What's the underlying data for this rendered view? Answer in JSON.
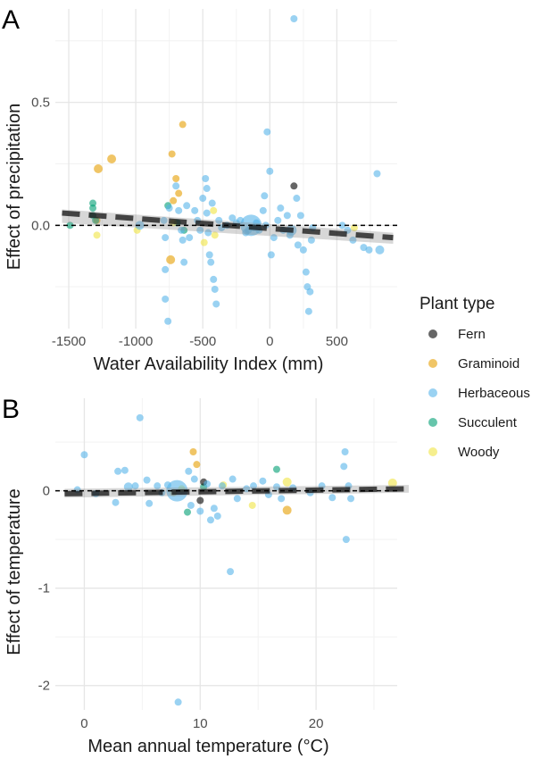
{
  "legend": {
    "title": "Plant type",
    "items": [
      {
        "label": "Fern",
        "color": "#000000"
      },
      {
        "label": "Graminoid",
        "color": "#E69F00"
      },
      {
        "label": "Herbaceous",
        "color": "#56B4E9"
      },
      {
        "label": "Succulent",
        "color": "#009E73"
      },
      {
        "label": "Woody",
        "color": "#F0E442"
      }
    ]
  },
  "chart_data": [
    {
      "panel": "A",
      "type": "scatter",
      "xlabel": "Water Availability Index (mm)",
      "ylabel": "Effect of precipitation",
      "xlim": [
        -1600,
        950
      ],
      "ylim": [
        -0.42,
        0.88
      ],
      "x_ticks": [
        -1500,
        -1000,
        -500,
        0,
        500
      ],
      "x_tick_labels": [
        "-1500",
        "-1000",
        "-500",
        "0",
        "500"
      ],
      "y_ticks": [
        0.0,
        0.5
      ],
      "y_tick_labels": [
        "0.0",
        "0.5"
      ],
      "grid": true,
      "reference_line_y": 0,
      "trend": {
        "x": [
          -1550,
          920
        ],
        "y": [
          0.05,
          -0.05
        ],
        "band_low": [
          0.01,
          -0.075
        ],
        "band_high": [
          0.065,
          -0.03
        ]
      },
      "points": [
        {
          "x": 180,
          "y": 0.84,
          "type": "Herbaceous",
          "size": 4
        },
        {
          "x": -1280,
          "y": 0.23,
          "type": "Graminoid",
          "size": 5
        },
        {
          "x": -1180,
          "y": 0.27,
          "type": "Graminoid",
          "size": 5
        },
        {
          "x": -650,
          "y": 0.41,
          "type": "Graminoid",
          "size": 4
        },
        {
          "x": -730,
          "y": 0.29,
          "type": "Graminoid",
          "size": 4
        },
        {
          "x": -700,
          "y": 0.19,
          "type": "Graminoid",
          "size": 4
        },
        {
          "x": -720,
          "y": 0.1,
          "type": "Graminoid",
          "size": 4
        },
        {
          "x": -680,
          "y": 0.13,
          "type": "Graminoid",
          "size": 4
        },
        {
          "x": -740,
          "y": -0.14,
          "type": "Graminoid",
          "size": 5
        },
        {
          "x": -1290,
          "y": 0.02,
          "type": "Graminoid",
          "size": 4
        },
        {
          "x": -1490,
          "y": 0.0,
          "type": "Succulent",
          "size": 4
        },
        {
          "x": -1320,
          "y": 0.09,
          "type": "Succulent",
          "size": 4
        },
        {
          "x": -1320,
          "y": 0.07,
          "type": "Succulent",
          "size": 4
        },
        {
          "x": -1320,
          "y": 0.04,
          "type": "Succulent",
          "size": 4
        },
        {
          "x": -1300,
          "y": 0.02,
          "type": "Succulent",
          "size": 4
        },
        {
          "x": -760,
          "y": 0.08,
          "type": "Succulent",
          "size": 4
        },
        {
          "x": -690,
          "y": 0.01,
          "type": "Succulent",
          "size": 4
        },
        {
          "x": -640,
          "y": -0.02,
          "type": "Succulent",
          "size": 4
        },
        {
          "x": 180,
          "y": 0.16,
          "type": "Fern",
          "size": 4
        },
        {
          "x": -1290,
          "y": -0.04,
          "type": "Woody",
          "size": 4
        },
        {
          "x": -990,
          "y": -0.02,
          "type": "Woody",
          "size": 4
        },
        {
          "x": -720,
          "y": 0.01,
          "type": "Woody",
          "size": 4
        },
        {
          "x": -490,
          "y": -0.07,
          "type": "Woody",
          "size": 4
        },
        {
          "x": -420,
          "y": 0.06,
          "type": "Woody",
          "size": 4
        },
        {
          "x": -410,
          "y": -0.04,
          "type": "Woody",
          "size": 4
        },
        {
          "x": 630,
          "y": -0.01,
          "type": "Woody",
          "size": 4
        },
        {
          "x": -970,
          "y": 0.0,
          "type": "Herbaceous",
          "size": 5
        },
        {
          "x": -790,
          "y": 0.02,
          "type": "Herbaceous",
          "size": 4
        },
        {
          "x": -780,
          "y": -0.05,
          "type": "Herbaceous",
          "size": 4
        },
        {
          "x": -780,
          "y": -0.18,
          "type": "Herbaceous",
          "size": 4
        },
        {
          "x": -780,
          "y": -0.3,
          "type": "Herbaceous",
          "size": 4
        },
        {
          "x": -760,
          "y": -0.39,
          "type": "Herbaceous",
          "size": 4
        },
        {
          "x": -750,
          "y": 0.07,
          "type": "Herbaceous",
          "size": 4
        },
        {
          "x": -700,
          "y": 0.16,
          "type": "Herbaceous",
          "size": 4
        },
        {
          "x": -680,
          "y": 0.06,
          "type": "Herbaceous",
          "size": 4
        },
        {
          "x": -660,
          "y": -0.02,
          "type": "Herbaceous",
          "size": 4
        },
        {
          "x": -650,
          "y": -0.06,
          "type": "Herbaceous",
          "size": 4
        },
        {
          "x": -640,
          "y": -0.15,
          "type": "Herbaceous",
          "size": 4
        },
        {
          "x": -620,
          "y": 0.08,
          "type": "Herbaceous",
          "size": 4
        },
        {
          "x": -600,
          "y": -0.05,
          "type": "Herbaceous",
          "size": 4
        },
        {
          "x": -560,
          "y": 0.06,
          "type": "Herbaceous",
          "size": 4
        },
        {
          "x": -540,
          "y": 0.02,
          "type": "Herbaceous",
          "size": 4
        },
        {
          "x": -520,
          "y": -0.02,
          "type": "Herbaceous",
          "size": 4
        },
        {
          "x": -500,
          "y": 0.11,
          "type": "Herbaceous",
          "size": 4
        },
        {
          "x": -480,
          "y": 0.19,
          "type": "Herbaceous",
          "size": 4
        },
        {
          "x": -470,
          "y": 0.15,
          "type": "Herbaceous",
          "size": 4
        },
        {
          "x": -470,
          "y": 0.05,
          "type": "Herbaceous",
          "size": 4
        },
        {
          "x": -460,
          "y": -0.03,
          "type": "Herbaceous",
          "size": 4
        },
        {
          "x": -450,
          "y": -0.12,
          "type": "Herbaceous",
          "size": 4
        },
        {
          "x": -440,
          "y": -0.15,
          "type": "Herbaceous",
          "size": 4
        },
        {
          "x": -430,
          "y": 0.09,
          "type": "Herbaceous",
          "size": 4
        },
        {
          "x": -420,
          "y": -0.22,
          "type": "Herbaceous",
          "size": 4
        },
        {
          "x": -410,
          "y": -0.26,
          "type": "Herbaceous",
          "size": 4
        },
        {
          "x": -400,
          "y": -0.32,
          "type": "Herbaceous",
          "size": 4
        },
        {
          "x": -380,
          "y": 0.02,
          "type": "Herbaceous",
          "size": 4
        },
        {
          "x": -360,
          "y": -0.01,
          "type": "Herbaceous",
          "size": 4
        },
        {
          "x": -320,
          "y": 0.0,
          "type": "Herbaceous",
          "size": 4
        },
        {
          "x": -280,
          "y": 0.03,
          "type": "Herbaceous",
          "size": 4
        },
        {
          "x": -250,
          "y": 0.01,
          "type": "Herbaceous",
          "size": 4
        },
        {
          "x": -220,
          "y": 0.02,
          "type": "Herbaceous",
          "size": 4
        },
        {
          "x": -180,
          "y": -0.03,
          "type": "Herbaceous",
          "size": 4
        },
        {
          "x": -160,
          "y": -0.02,
          "type": "Herbaceous",
          "size": 4
        },
        {
          "x": -120,
          "y": -0.01,
          "type": "Herbaceous",
          "size": 4
        },
        {
          "x": -100,
          "y": 0.01,
          "type": "Herbaceous",
          "size": 4
        },
        {
          "x": -80,
          "y": -0.02,
          "type": "Herbaceous",
          "size": 4
        },
        {
          "x": -40,
          "y": 0.12,
          "type": "Herbaceous",
          "size": 4
        },
        {
          "x": -50,
          "y": 0.06,
          "type": "Herbaceous",
          "size": 4
        },
        {
          "x": -30,
          "y": 0.0,
          "type": "Herbaceous",
          "size": 4
        },
        {
          "x": -20,
          "y": 0.38,
          "type": "Herbaceous",
          "size": 4
        },
        {
          "x": 0,
          "y": 0.22,
          "type": "Herbaceous",
          "size": 4
        },
        {
          "x": 10,
          "y": -0.12,
          "type": "Herbaceous",
          "size": 4
        },
        {
          "x": 30,
          "y": -0.05,
          "type": "Herbaceous",
          "size": 4
        },
        {
          "x": 60,
          "y": 0.02,
          "type": "Herbaceous",
          "size": 4
        },
        {
          "x": 80,
          "y": 0.07,
          "type": "Herbaceous",
          "size": 4
        },
        {
          "x": 100,
          "y": -0.02,
          "type": "Herbaceous",
          "size": 4
        },
        {
          "x": 130,
          "y": 0.04,
          "type": "Herbaceous",
          "size": 4
        },
        {
          "x": 150,
          "y": -0.04,
          "type": "Herbaceous",
          "size": 4
        },
        {
          "x": 200,
          "y": 0.11,
          "type": "Herbaceous",
          "size": 4
        },
        {
          "x": 210,
          "y": -0.08,
          "type": "Herbaceous",
          "size": 4
        },
        {
          "x": 230,
          "y": 0.04,
          "type": "Herbaceous",
          "size": 4
        },
        {
          "x": 250,
          "y": -0.1,
          "type": "Herbaceous",
          "size": 4
        },
        {
          "x": 270,
          "y": -0.19,
          "type": "Herbaceous",
          "size": 4
        },
        {
          "x": 280,
          "y": -0.25,
          "type": "Herbaceous",
          "size": 4
        },
        {
          "x": 290,
          "y": -0.35,
          "type": "Herbaceous",
          "size": 4
        },
        {
          "x": 300,
          "y": -0.27,
          "type": "Herbaceous",
          "size": 4
        },
        {
          "x": 310,
          "y": -0.06,
          "type": "Herbaceous",
          "size": 4
        },
        {
          "x": 320,
          "y": -0.01,
          "type": "Herbaceous",
          "size": 4
        },
        {
          "x": 540,
          "y": 0.0,
          "type": "Herbaceous",
          "size": 4
        },
        {
          "x": 580,
          "y": -0.02,
          "type": "Herbaceous",
          "size": 4
        },
        {
          "x": 620,
          "y": -0.06,
          "type": "Herbaceous",
          "size": 4
        },
        {
          "x": 700,
          "y": -0.09,
          "type": "Herbaceous",
          "size": 4
        },
        {
          "x": 740,
          "y": -0.1,
          "type": "Herbaceous",
          "size": 4
        },
        {
          "x": 800,
          "y": 0.21,
          "type": "Herbaceous",
          "size": 4
        },
        {
          "x": 820,
          "y": -0.1,
          "type": "Herbaceous",
          "size": 5
        },
        {
          "x": -140,
          "y": 0.0,
          "type": "Herbaceous",
          "size": 12
        },
        {
          "x": 160,
          "y": -0.02,
          "type": "Herbaceous",
          "size": 6
        }
      ]
    },
    {
      "panel": "B",
      "type": "scatter",
      "xlabel": "Mean annual temperature (°C)",
      "ylabel": "Effect of temperature",
      "xlim": [
        -2.5,
        27
      ],
      "ylim": [
        -2.25,
        0.95
      ],
      "x_ticks": [
        0,
        10,
        20
      ],
      "x_tick_labels": [
        "0",
        "10",
        "20"
      ],
      "y_ticks": [
        -2,
        -1,
        0
      ],
      "y_tick_labels": [
        "-2",
        "-1",
        "0"
      ],
      "grid": true,
      "reference_line_y": 0,
      "trend": {
        "x": [
          -1.7,
          28
        ],
        "y": [
          -0.03,
          0.02
        ],
        "band_low": [
          -0.07,
          -0.02
        ],
        "band_high": [
          0.02,
          0.06
        ]
      },
      "points": [
        {
          "x": 4.8,
          "y": 0.75,
          "type": "Herbaceous",
          "size": 4
        },
        {
          "x": 0.0,
          "y": 0.37,
          "type": "Herbaceous",
          "size": 4
        },
        {
          "x": 22.5,
          "y": 0.4,
          "type": "Herbaceous",
          "size": 4
        },
        {
          "x": 9.4,
          "y": 0.4,
          "type": "Graminoid",
          "size": 4
        },
        {
          "x": 9.7,
          "y": 0.27,
          "type": "Graminoid",
          "size": 4
        },
        {
          "x": 7.7,
          "y": -0.02,
          "type": "Graminoid",
          "size": 4
        },
        {
          "x": 17.5,
          "y": -0.2,
          "type": "Graminoid",
          "size": 5
        },
        {
          "x": 8.4,
          "y": 0.02,
          "type": "Woody",
          "size": 4
        },
        {
          "x": 12.0,
          "y": 0.06,
          "type": "Woody",
          "size": 4
        },
        {
          "x": 17.5,
          "y": 0.09,
          "type": "Woody",
          "size": 5
        },
        {
          "x": 26.6,
          "y": 0.08,
          "type": "Woody",
          "size": 5
        },
        {
          "x": 14.5,
          "y": -0.15,
          "type": "Woody",
          "size": 4
        },
        {
          "x": 8.9,
          "y": -0.22,
          "type": "Succulent",
          "size": 4
        },
        {
          "x": 16.6,
          "y": 0.22,
          "type": "Succulent",
          "size": 4
        },
        {
          "x": 10.3,
          "y": 0.04,
          "type": "Succulent",
          "size": 4
        },
        {
          "x": 10.0,
          "y": -0.1,
          "type": "Fern",
          "size": 4
        },
        {
          "x": 10.3,
          "y": 0.09,
          "type": "Fern",
          "size": 4
        },
        {
          "x": 8.0,
          "y": 0.0,
          "type": "Herbaceous",
          "size": 12
        },
        {
          "x": -0.6,
          "y": 0.01,
          "type": "Herbaceous",
          "size": 4
        },
        {
          "x": 1.0,
          "y": -0.03,
          "type": "Herbaceous",
          "size": 4
        },
        {
          "x": 2.7,
          "y": -0.12,
          "type": "Herbaceous",
          "size": 4
        },
        {
          "x": 2.9,
          "y": 0.2,
          "type": "Herbaceous",
          "size": 4
        },
        {
          "x": 3.5,
          "y": 0.21,
          "type": "Herbaceous",
          "size": 4
        },
        {
          "x": 3.8,
          "y": 0.04,
          "type": "Herbaceous",
          "size": 5
        },
        {
          "x": 4.4,
          "y": 0.05,
          "type": "Herbaceous",
          "size": 4
        },
        {
          "x": 5.4,
          "y": 0.11,
          "type": "Herbaceous",
          "size": 4
        },
        {
          "x": 5.6,
          "y": -0.13,
          "type": "Herbaceous",
          "size": 4
        },
        {
          "x": 6.3,
          "y": 0.05,
          "type": "Herbaceous",
          "size": 4
        },
        {
          "x": 6.7,
          "y": -0.02,
          "type": "Herbaceous",
          "size": 4
        },
        {
          "x": 7.2,
          "y": 0.06,
          "type": "Herbaceous",
          "size": 4
        },
        {
          "x": 8.1,
          "y": -2.17,
          "type": "Herbaceous",
          "size": 4
        },
        {
          "x": 9.0,
          "y": 0.2,
          "type": "Herbaceous",
          "size": 4
        },
        {
          "x": 9.2,
          "y": -0.15,
          "type": "Herbaceous",
          "size": 4
        },
        {
          "x": 9.5,
          "y": 0.12,
          "type": "Herbaceous",
          "size": 4
        },
        {
          "x": 10.0,
          "y": -0.21,
          "type": "Herbaceous",
          "size": 4
        },
        {
          "x": 10.6,
          "y": 0.07,
          "type": "Herbaceous",
          "size": 4
        },
        {
          "x": 10.9,
          "y": -0.3,
          "type": "Herbaceous",
          "size": 4
        },
        {
          "x": 11.2,
          "y": -0.18,
          "type": "Herbaceous",
          "size": 4
        },
        {
          "x": 11.5,
          "y": -0.26,
          "type": "Herbaceous",
          "size": 4
        },
        {
          "x": 11.9,
          "y": 0.05,
          "type": "Herbaceous",
          "size": 4
        },
        {
          "x": 12.6,
          "y": -0.83,
          "type": "Herbaceous",
          "size": 4
        },
        {
          "x": 12.8,
          "y": 0.12,
          "type": "Herbaceous",
          "size": 4
        },
        {
          "x": 13.2,
          "y": -0.08,
          "type": "Herbaceous",
          "size": 4
        },
        {
          "x": 14.0,
          "y": 0.02,
          "type": "Herbaceous",
          "size": 4
        },
        {
          "x": 14.6,
          "y": 0.05,
          "type": "Herbaceous",
          "size": 4
        },
        {
          "x": 15.4,
          "y": 0.1,
          "type": "Herbaceous",
          "size": 4
        },
        {
          "x": 15.9,
          "y": -0.04,
          "type": "Herbaceous",
          "size": 4
        },
        {
          "x": 16.6,
          "y": 0.04,
          "type": "Herbaceous",
          "size": 4
        },
        {
          "x": 17.0,
          "y": -0.08,
          "type": "Herbaceous",
          "size": 4
        },
        {
          "x": 18.0,
          "y": 0.03,
          "type": "Herbaceous",
          "size": 4
        },
        {
          "x": 19.5,
          "y": -0.02,
          "type": "Herbaceous",
          "size": 4
        },
        {
          "x": 20.5,
          "y": 0.05,
          "type": "Herbaceous",
          "size": 4
        },
        {
          "x": 21.4,
          "y": -0.07,
          "type": "Herbaceous",
          "size": 4
        },
        {
          "x": 22.4,
          "y": 0.25,
          "type": "Herbaceous",
          "size": 4
        },
        {
          "x": 22.6,
          "y": -0.5,
          "type": "Herbaceous",
          "size": 4
        },
        {
          "x": 22.8,
          "y": 0.05,
          "type": "Herbaceous",
          "size": 4
        },
        {
          "x": 23.0,
          "y": -0.08,
          "type": "Herbaceous",
          "size": 4
        }
      ]
    }
  ]
}
